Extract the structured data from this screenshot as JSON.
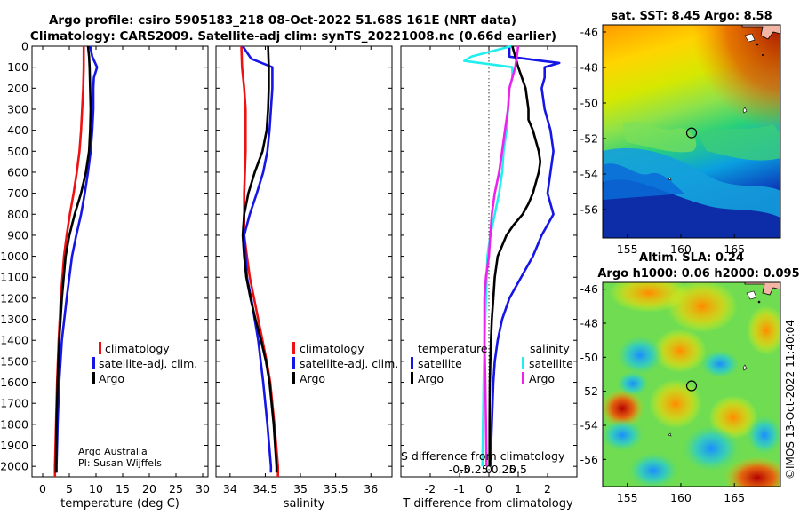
{
  "figure": {
    "title_line1": "Argo profile: csiro 5905183_218 08-Oct-2022 51.68S 161E (NRT data)",
    "title_line2": "Climatology: CARS2009. Satellite-adj clim: synTS_20221008.nc (0.66d earlier)",
    "credit_line1": "Argo Australia",
    "credit_line2": "PI: Susan Wijffels",
    "watermark": "©IMOS 13-Oct-2022 11:40:04"
  },
  "colors": {
    "red": "#ee1111",
    "blue": "#1515e6",
    "black": "#000000",
    "cyan": "#22eeee",
    "magenta": "#ee22ee"
  },
  "chart_data": [
    {
      "type": "line",
      "id": "temperature",
      "xlabel": "temperature (deg C)",
      "xlim": [
        -2,
        31
      ],
      "ylim": [
        2050,
        0
      ],
      "x_ticks": [
        0,
        5,
        10,
        15,
        20,
        25,
        30
      ],
      "y_ticks": [
        0,
        100,
        200,
        300,
        400,
        500,
        600,
        700,
        800,
        900,
        1000,
        1100,
        1200,
        1300,
        1400,
        1500,
        1600,
        1700,
        1800,
        1900,
        2000
      ],
      "legend": [
        "climatology",
        "satellite-adj. clim.",
        "Argo"
      ],
      "series": [
        {
          "name": "climatology",
          "color": "red",
          "depth": [
            0,
            100,
            200,
            300,
            400,
            500,
            600,
            700,
            800,
            900,
            1000,
            1200,
            1400,
            1600,
            1800,
            2000,
            2050
          ],
          "values": [
            7.7,
            7.7,
            7.6,
            7.4,
            7.2,
            6.9,
            6.4,
            5.8,
            5.1,
            4.5,
            4.0,
            3.4,
            3.0,
            2.7,
            2.5,
            2.3,
            2.3
          ]
        },
        {
          "name": "satellite-adj. clim.",
          "color": "blue",
          "depth": [
            0,
            50,
            100,
            150,
            200,
            300,
            400,
            500,
            600,
            700,
            800,
            900,
            1000,
            1200,
            1400,
            1600,
            1800,
            2000,
            2030
          ],
          "values": [
            8.9,
            9.3,
            10.2,
            9.6,
            9.5,
            9.5,
            9.3,
            9.0,
            8.5,
            7.9,
            7.2,
            6.3,
            5.5,
            4.5,
            3.6,
            3.1,
            2.8,
            2.6,
            2.6
          ]
        },
        {
          "name": "Argo",
          "color": "black",
          "depth": [
            0,
            50,
            100,
            200,
            300,
            400,
            500,
            600,
            700,
            800,
            900,
            1000,
            1200,
            1400,
            1600,
            1800,
            2000,
            2030
          ],
          "values": [
            8.5,
            8.7,
            8.8,
            8.9,
            9.0,
            8.9,
            8.7,
            8.1,
            7.2,
            6.0,
            5.0,
            4.3,
            3.6,
            3.1,
            2.8,
            2.6,
            2.5,
            2.5
          ]
        }
      ]
    },
    {
      "type": "line",
      "id": "salinity",
      "xlabel": "salinity",
      "xlim": [
        33.8,
        36.3
      ],
      "ylim": [
        2050,
        0
      ],
      "x_ticks": [
        34,
        34.5,
        35,
        35.5,
        36
      ],
      "x_tick_labels": [
        "34",
        "34.5",
        "35",
        "35.5",
        "36"
      ],
      "legend": [
        "climatology",
        "satellite-adj. clim.",
        "Argo"
      ],
      "series": [
        {
          "name": "climatology",
          "color": "red",
          "depth": [
            0,
            100,
            200,
            300,
            400,
            500,
            600,
            700,
            800,
            900,
            1000,
            1100,
            1200,
            1300,
            1400,
            1500,
            1600,
            1800,
            2000,
            2050
          ],
          "values": [
            34.16,
            34.17,
            34.2,
            34.22,
            34.22,
            34.22,
            34.21,
            34.2,
            34.2,
            34.2,
            34.24,
            34.28,
            34.34,
            34.4,
            34.46,
            34.52,
            34.57,
            34.63,
            34.68,
            34.68
          ]
        },
        {
          "name": "satellite-adj. clim.",
          "color": "blue",
          "depth": [
            0,
            60,
            100,
            200,
            300,
            400,
            500,
            600,
            700,
            800,
            900,
            1000,
            1100,
            1200,
            1400,
            1600,
            1800,
            2000,
            2030
          ],
          "values": [
            34.18,
            34.3,
            34.6,
            34.6,
            34.58,
            34.56,
            34.53,
            34.47,
            34.38,
            34.28,
            34.2,
            34.22,
            34.24,
            34.3,
            34.4,
            34.47,
            34.53,
            34.58,
            34.58
          ]
        },
        {
          "name": "Argo",
          "color": "black",
          "depth": [
            0,
            100,
            200,
            300,
            400,
            500,
            600,
            700,
            800,
            900,
            1000,
            1100,
            1200,
            1300,
            1400,
            1500,
            1600,
            1800,
            2000,
            2030
          ],
          "values": [
            34.54,
            34.55,
            34.55,
            34.54,
            34.52,
            34.46,
            34.35,
            34.26,
            34.2,
            34.18,
            34.2,
            34.23,
            34.29,
            34.36,
            34.44,
            34.51,
            34.56,
            34.62,
            34.66,
            34.66
          ]
        }
      ]
    },
    {
      "type": "line",
      "id": "difference",
      "xlabel": "T difference from climatology",
      "xlabel_top": "S difference from climatology",
      "xlim": [
        -3,
        3
      ],
      "ylim": [
        2050,
        0
      ],
      "x_ticks": [
        -2,
        -1,
        0,
        1,
        2
      ],
      "x_tick_labels": [
        "-2",
        "-1",
        "0",
        "1",
        "2"
      ],
      "s_ticks": [
        -1,
        -0.5,
        0,
        0.5,
        1
      ],
      "s_tick_labels": [
        "-0.5",
        "-0.25",
        "0",
        "0.25",
        "0.5"
      ],
      "legend_temperature_title": "temperature",
      "legend_salinity_title": "salinity",
      "legend_temperature": [
        "satellite",
        "Argo"
      ],
      "legend_salinity": [
        "satellite",
        "Argo"
      ],
      "series": [
        {
          "name": "T satellite",
          "color": "blue",
          "depth": [
            0,
            50,
            70,
            80,
            100,
            150,
            200,
            300,
            400,
            500,
            600,
            700,
            800,
            900,
            1000,
            1100,
            1200,
            1300,
            1400,
            1500,
            1600,
            1800,
            2000
          ],
          "values": [
            0.7,
            0.7,
            1.8,
            2.4,
            1.9,
            1.9,
            1.8,
            1.9,
            2.1,
            2.2,
            2.1,
            2.0,
            2.2,
            1.8,
            1.5,
            1.1,
            0.7,
            0.45,
            0.3,
            0.2,
            0.15,
            0.1,
            0.05
          ]
        },
        {
          "name": "T Argo",
          "color": "black",
          "depth": [
            0,
            100,
            200,
            300,
            350,
            400,
            450,
            500,
            550,
            600,
            650,
            700,
            750,
            800,
            850,
            900,
            1000,
            1100,
            1200,
            1300,
            1400,
            1500,
            1600,
            1800,
            2000
          ],
          "values": [
            0.8,
            1.0,
            1.25,
            1.35,
            1.35,
            1.5,
            1.6,
            1.7,
            1.75,
            1.7,
            1.6,
            1.5,
            1.35,
            1.15,
            0.85,
            0.6,
            0.3,
            0.2,
            0.15,
            0.1,
            0.07,
            0.05,
            0.03,
            0.02,
            0.02
          ]
        },
        {
          "name": "S satellite",
          "color": "cyan",
          "depth": [
            0,
            50,
            70,
            100,
            150,
            200,
            300,
            400,
            500,
            600,
            700,
            800,
            900,
            1000,
            1200,
            1400,
            1600,
            1800,
            2000
          ],
          "values": [
            0.76,
            -0.6,
            -0.84,
            0.8,
            0.8,
            0.7,
            0.65,
            0.6,
            0.5,
            0.45,
            0.35,
            0.2,
            0.05,
            -0.05,
            -0.1,
            -0.15,
            -0.18,
            -0.2,
            -0.22
          ]
        },
        {
          "name": "S Argo",
          "color": "magenta",
          "depth": [
            0,
            100,
            200,
            300,
            400,
            500,
            600,
            700,
            800,
            900,
            1000,
            1100,
            1200,
            1400,
            1600,
            1800,
            2000
          ],
          "values": [
            1.0,
            0.9,
            0.7,
            0.65,
            0.55,
            0.45,
            0.35,
            0.2,
            0.1,
            0.05,
            0.0,
            -0.1,
            -0.15,
            -0.15,
            -0.12,
            -0.1,
            -0.08
          ]
        }
      ]
    }
  ],
  "maps": [
    {
      "id": "sst",
      "title": "sat. SST: 8.45 Argo: 8.58",
      "lat_ticks": [
        "-46",
        "-48",
        "-50",
        "-52",
        "-54",
        "-56"
      ],
      "lon_ticks": [
        "155",
        "160",
        "165"
      ],
      "float_lon": 161,
      "float_lat": -51.68
    },
    {
      "id": "sla",
      "title_line1": "Altim. SLA: 0.24",
      "title_line2": "Argo h1000: 0.06 h2000: 0.095",
      "lat_ticks": [
        "-46",
        "-48",
        "-50",
        "-52",
        "-54",
        "-56"
      ],
      "lon_ticks": [
        "155",
        "160",
        "165"
      ],
      "float_lon": 161,
      "float_lat": -51.68
    }
  ]
}
